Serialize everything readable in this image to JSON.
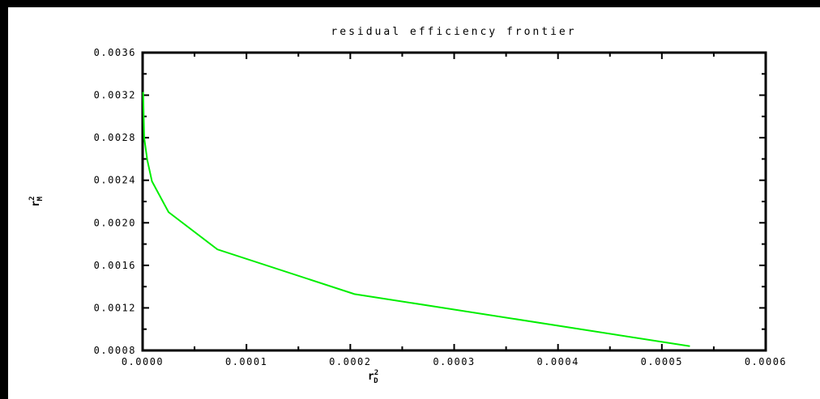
{
  "chart_data": {
    "type": "line",
    "title": "residual efficiency frontier",
    "xlabel": "r_D^2",
    "ylabel": "r_M^2",
    "xlim": [
      0,
      0.0006
    ],
    "ylim": [
      0.0008,
      0.0036
    ],
    "x_ticks": [
      0,
      0.0001,
      0.0002,
      0.0003,
      0.0004,
      0.0005,
      0.0006
    ],
    "x_tick_labels": [
      "0.0000",
      "0.0001",
      "0.0002",
      "0.0003",
      "0.0004",
      "0.0005",
      "0.0006"
    ],
    "y_ticks": [
      0.0008,
      0.0012,
      0.0016,
      0.002,
      0.0024,
      0.0028,
      0.0032,
      0.0036
    ],
    "y_tick_labels": [
      "0.0008",
      "0.0012",
      "0.0016",
      "0.0020",
      "0.0024",
      "0.0028",
      "0.0032",
      "0.0036"
    ],
    "grid": false,
    "series": [
      {
        "color": "#00ee00",
        "x": [
          5e-07,
          1.5e-06,
          4.5e-06,
          9e-06,
          2.5e-05,
          7.2e-05,
          0.000204,
          0.000527
        ],
        "y": [
          0.00323,
          0.0028,
          0.00259,
          0.00239,
          0.0021,
          0.00175,
          0.00133,
          0.00084
        ]
      }
    ]
  }
}
